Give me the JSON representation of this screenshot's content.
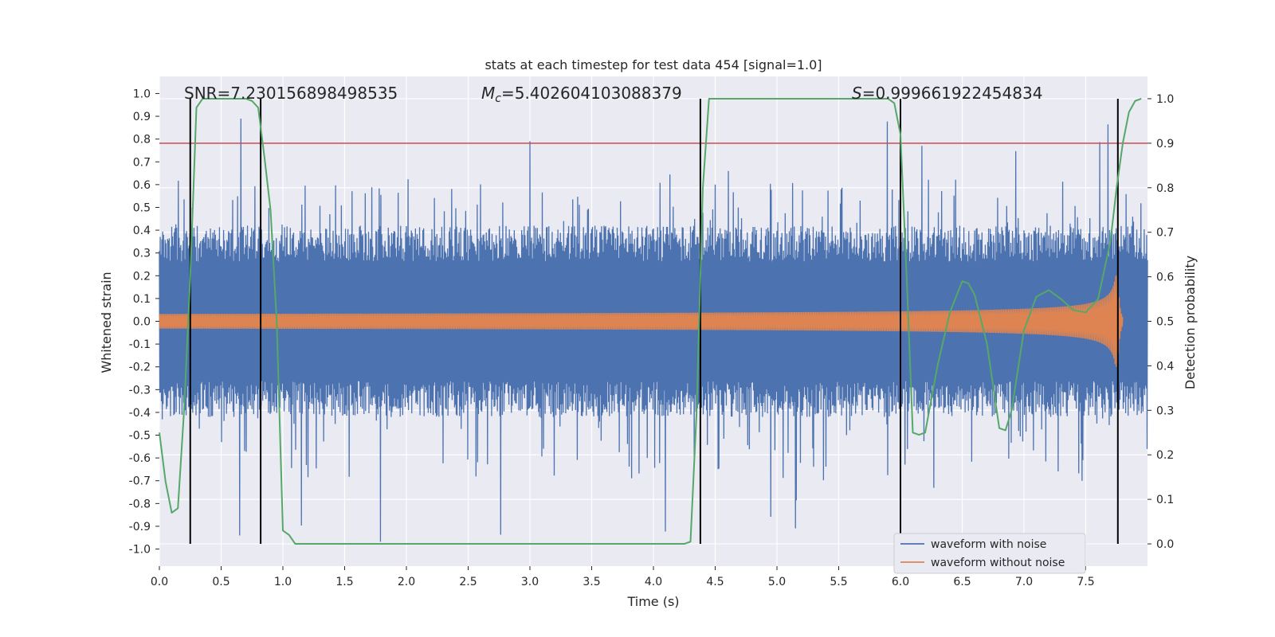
{
  "chart_data": {
    "type": "line",
    "title": "stats at each timestep for test data 454 [signal=1.0]",
    "xlabel": "Time (s)",
    "ylabel": "Whitened strain",
    "y2label": "Detection probability",
    "xlim": [
      0.0,
      8.0
    ],
    "ylim": [
      -1.075,
      1.075
    ],
    "y2lim": [
      -0.05,
      1.05
    ],
    "grid": true,
    "xticks": [
      0.0,
      0.5,
      1.0,
      1.5,
      2.0,
      2.5,
      3.0,
      3.5,
      4.0,
      4.5,
      5.0,
      5.5,
      6.0,
      6.5,
      7.0,
      7.5
    ],
    "xtick_labels": [
      "0.0",
      "0.5",
      "1.0",
      "1.5",
      "2.0",
      "2.5",
      "3.0",
      "3.5",
      "4.0",
      "4.5",
      "5.0",
      "5.5",
      "6.0",
      "6.5",
      "7.0",
      "7.5"
    ],
    "yticks": [
      1.0,
      0.9,
      0.8,
      0.7,
      0.6,
      0.5,
      0.4,
      0.3,
      0.2,
      0.1,
      0.0,
      -0.1,
      -0.2,
      -0.3,
      -0.4,
      -0.5,
      -0.6,
      -0.7,
      -0.8,
      -0.9,
      -1.0
    ],
    "ytick_labels": [
      "1.0",
      "0.9",
      "0.8",
      "0.7",
      "0.6",
      "0.5",
      "0.4",
      "0.3",
      "0.2",
      "0.1",
      "0.0",
      "-0.1",
      "-0.2",
      "-0.3",
      "-0.4",
      "-0.5",
      "-0.6",
      "-0.7",
      "-0.8",
      "-0.9",
      "-1.0"
    ],
    "y2ticks": [
      1.0,
      0.9,
      0.8,
      0.7,
      0.6,
      0.5,
      0.4,
      0.3,
      0.2,
      0.1,
      0.0
    ],
    "y2tick_labels": [
      "1.0",
      "0.9",
      "0.8",
      "0.7",
      "0.6",
      "0.5",
      "0.4",
      "0.3",
      "0.2",
      "0.1",
      "0.0"
    ],
    "annotations": {
      "snr": "SNR=7.230156898498535",
      "mc_symbol": "M",
      "mc_subscript": "c",
      "mc_value": "=5.402604103088379",
      "s_symbol": "S",
      "s_value": "=0.999661922454834"
    },
    "threshold": {
      "axis": "secondary",
      "value": 0.9,
      "color": "#c44e52"
    },
    "vertical_lines": {
      "x": [
        0.25,
        0.82,
        4.38,
        6.0,
        7.76
      ],
      "y2_range": [
        0.0,
        1.0
      ],
      "color": "#000000"
    },
    "series": [
      {
        "name": "waveform with noise",
        "axis": "primary",
        "color": "#4c72b0",
        "kind": "noise",
        "x_range": [
          0.0,
          8.0
        ],
        "core_amplitude": 0.35,
        "typical_peak": 0.6,
        "max_peak": 0.9,
        "min_trough": -0.98
      },
      {
        "name": "waveform without noise",
        "axis": "primary",
        "color": "#dd8452",
        "kind": "chirp",
        "x_range": [
          0.0,
          7.8
        ],
        "amplitude_start": 0.02,
        "amplitude_peak": 0.2,
        "merger_time": 7.76
      },
      {
        "name": "Detection probability",
        "axis": "secondary",
        "color": "#55a868",
        "x": [
          0.0,
          0.05,
          0.1,
          0.15,
          0.2,
          0.25,
          0.3,
          0.35,
          0.4,
          0.5,
          0.6,
          0.7,
          0.75,
          0.8,
          0.85,
          0.9,
          0.95,
          1.0,
          1.05,
          1.1,
          1.5,
          2.0,
          2.5,
          3.0,
          3.5,
          4.0,
          4.25,
          4.3,
          4.35,
          4.4,
          4.45,
          4.5,
          5.0,
          5.5,
          5.9,
          5.95,
          6.0,
          6.05,
          6.1,
          6.15,
          6.2,
          6.3,
          6.4,
          6.5,
          6.55,
          6.6,
          6.7,
          6.8,
          6.85,
          6.9,
          7.0,
          7.1,
          7.2,
          7.3,
          7.4,
          7.5,
          7.6,
          7.7,
          7.75,
          7.8,
          7.85,
          7.9,
          7.95
        ],
        "values": [
          0.25,
          0.14,
          0.07,
          0.08,
          0.3,
          0.6,
          0.98,
          1.0,
          1.0,
          1.0,
          1.0,
          1.0,
          0.995,
          0.98,
          0.87,
          0.75,
          0.5,
          0.03,
          0.02,
          0.0,
          0.0,
          0.0,
          0.0,
          0.0,
          0.0,
          0.0,
          0.0,
          0.005,
          0.3,
          0.8,
          1.0,
          1.0,
          1.0,
          1.0,
          1.0,
          0.99,
          0.92,
          0.6,
          0.25,
          0.245,
          0.25,
          0.4,
          0.52,
          0.59,
          0.585,
          0.56,
          0.45,
          0.26,
          0.255,
          0.3,
          0.48,
          0.555,
          0.57,
          0.55,
          0.525,
          0.52,
          0.55,
          0.68,
          0.8,
          0.9,
          0.97,
          0.995,
          1.0
        ]
      }
    ],
    "legend": {
      "placement": "lower-right",
      "entries": [
        "waveform with noise",
        "waveform without noise"
      ]
    }
  },
  "colors": {
    "axes_background": "#eaeaf2",
    "grid": "#ffffff",
    "noise": "#4c72b0",
    "signal": "#dd8452",
    "probability": "#55a868",
    "threshold": "#c44e52"
  }
}
